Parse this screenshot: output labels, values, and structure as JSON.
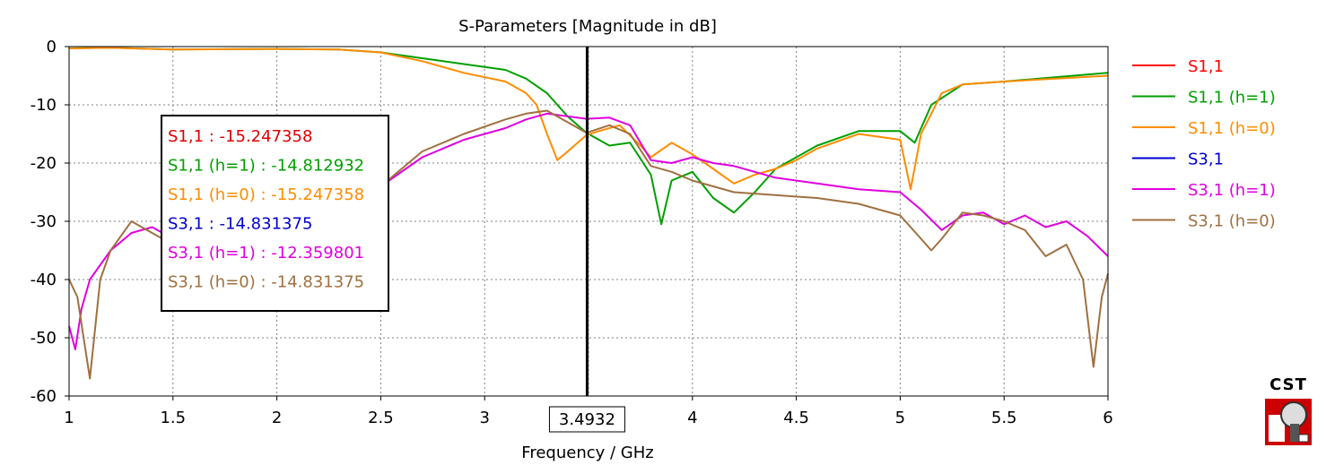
{
  "chart_data": {
    "type": "line",
    "title": "S-Parameters [Magnitude in dB]",
    "xlabel": "Frequency / GHz",
    "ylabel": "",
    "xlim": [
      1,
      6
    ],
    "ylim": [
      -60,
      0
    ],
    "x_ticks": [
      "1",
      "1.5",
      "2",
      "2.5",
      "3",
      "3.4932",
      "4",
      "4.5",
      "5",
      "5.5",
      "6"
    ],
    "y_ticks": [
      "0",
      "-10",
      "-20",
      "-30",
      "-40",
      "-50",
      "-60"
    ],
    "grid": true,
    "legend_position": "right",
    "marker_x": 3.4932,
    "marker_label": "3.4932",
    "marker_readout": [
      {
        "text": "S1,1 : -15.247358",
        "color": "#e00000"
      },
      {
        "text": "S1,1 (h=1) : -14.812932",
        "color": "#00a000"
      },
      {
        "text": "S1,1 (h=0) : -15.247358",
        "color": "#ff8c00"
      },
      {
        "text": "S3,1 : -14.831375",
        "color": "#0000d0"
      },
      {
        "text": "S3,1 (h=1) : -12.359801",
        "color": "#e000e0"
      },
      {
        "text": "S3,1 (h=0) : -14.831375",
        "color": "#a07040"
      }
    ],
    "series": [
      {
        "name": "S1,1",
        "color": "#ff0000",
        "x": [],
        "y": []
      },
      {
        "name": "S1,1 (h=1)",
        "color": "#00a000",
        "x": [
          1,
          1.2,
          1.5,
          2,
          2.3,
          2.5,
          2.7,
          2.9,
          3.1,
          3.2,
          3.3,
          3.4,
          3.49,
          3.6,
          3.7,
          3.8,
          3.85,
          3.9,
          4.0,
          4.1,
          4.2,
          4.3,
          4.4,
          4.5,
          4.6,
          4.8,
          5.0,
          5.07,
          5.15,
          5.3,
          5.5,
          6.0
        ],
        "y": [
          -0.3,
          -0.2,
          -0.5,
          -0.4,
          -0.5,
          -1.0,
          -2.0,
          -3.0,
          -4.0,
          -5.5,
          -8.0,
          -12.0,
          -14.8,
          -17.0,
          -16.5,
          -22.0,
          -30.5,
          -23.0,
          -21.5,
          -26.0,
          -28.5,
          -25.0,
          -21.0,
          -19.0,
          -17.0,
          -14.5,
          -14.5,
          -16.5,
          -10.0,
          -6.5,
          -6.0,
          -4.5
        ]
      },
      {
        "name": "S1,1 (h=0)",
        "color": "#ff8c00",
        "x": [
          1,
          1.2,
          1.5,
          2,
          2.3,
          2.5,
          2.7,
          2.9,
          3.1,
          3.2,
          3.25,
          3.3,
          3.35,
          3.4,
          3.49,
          3.55,
          3.65,
          3.75,
          3.8,
          3.9,
          4.0,
          4.1,
          4.2,
          4.3,
          4.4,
          4.5,
          4.6,
          4.8,
          5.0,
          5.05,
          5.1,
          5.2,
          5.3,
          5.5,
          6.0
        ],
        "y": [
          -0.3,
          -0.2,
          -0.5,
          -0.4,
          -0.5,
          -1.0,
          -2.5,
          -4.5,
          -6.0,
          -8.0,
          -10.0,
          -15.0,
          -19.5,
          -18.0,
          -15.2,
          -14.5,
          -13.5,
          -17.0,
          -19.0,
          -16.5,
          -18.5,
          -21.0,
          -23.5,
          -22.0,
          -21.0,
          -19.5,
          -17.5,
          -15.0,
          -16.0,
          -24.5,
          -15.0,
          -8.0,
          -6.5,
          -6.0,
          -5.0
        ]
      },
      {
        "name": "S3,1",
        "color": "#0000d0",
        "x": [],
        "y": []
      },
      {
        "name": "S3,1 (h=1)",
        "color": "#e000e0",
        "x": [
          1,
          1.03,
          1.06,
          1.1,
          1.2,
          1.3,
          1.4,
          1.5,
          1.7,
          2.0,
          2.3,
          2.5,
          2.7,
          2.9,
          3.1,
          3.2,
          3.3,
          3.49,
          3.6,
          3.7,
          3.8,
          3.9,
          4.0,
          4.1,
          4.2,
          4.4,
          4.6,
          4.8,
          5.0,
          5.1,
          5.2,
          5.3,
          5.4,
          5.5,
          5.6,
          5.7,
          5.8,
          5.9,
          6.0
        ],
        "y": [
          -48,
          -52,
          -45,
          -40,
          -35,
          -32,
          -31,
          -33,
          -32,
          -30,
          -28,
          -24,
          -19,
          -16,
          -14,
          -12.5,
          -11.5,
          -12.4,
          -12.2,
          -13.5,
          -19.5,
          -20.0,
          -19.0,
          -20.0,
          -20.5,
          -22.5,
          -23.5,
          -24.5,
          -25.0,
          -28.0,
          -31.5,
          -29.0,
          -28.5,
          -30.5,
          -29.0,
          -31.0,
          -30.0,
          -32.5,
          -36.0
        ]
      },
      {
        "name": "S3,1 (h=0)",
        "color": "#a07040",
        "x": [
          1,
          1.04,
          1.07,
          1.1,
          1.15,
          1.2,
          1.3,
          1.4,
          1.5,
          1.7,
          2.0,
          2.3,
          2.5,
          2.7,
          2.9,
          3.1,
          3.2,
          3.3,
          3.49,
          3.6,
          3.7,
          3.8,
          3.9,
          4.0,
          4.1,
          4.2,
          4.4,
          4.6,
          4.8,
          5.0,
          5.1,
          5.15,
          5.2,
          5.3,
          5.4,
          5.5,
          5.6,
          5.7,
          5.8,
          5.88,
          5.93,
          5.97,
          6.0
        ],
        "y": [
          -40,
          -43,
          -50,
          -57,
          -40,
          -35,
          -30,
          -32,
          -34,
          -33,
          -31,
          -28,
          -24,
          -18,
          -15,
          -12.5,
          -11.5,
          -11.0,
          -14.8,
          -13.5,
          -15.0,
          -20.5,
          -21.5,
          -23.0,
          -24.0,
          -25.0,
          -25.5,
          -26.0,
          -27.0,
          -29.0,
          -33.0,
          -35.0,
          -33.0,
          -28.5,
          -29.0,
          -30.0,
          -31.5,
          -36.0,
          -34.0,
          -40.0,
          -55.0,
          -43.0,
          -39.0
        ]
      }
    ]
  }
}
